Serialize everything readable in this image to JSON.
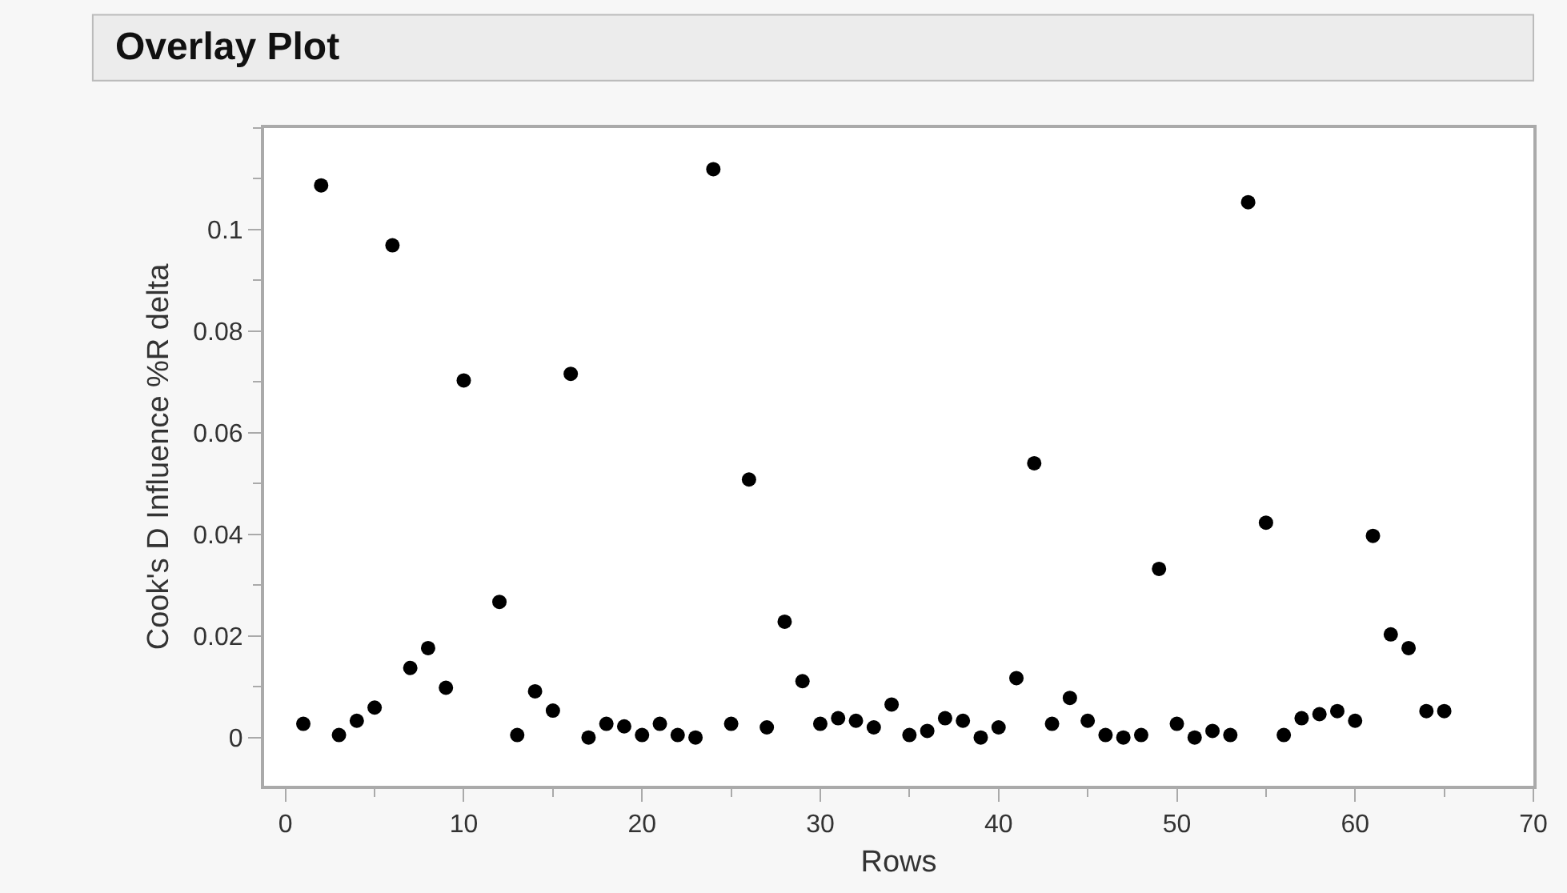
{
  "chart_data": {
    "type": "scatter",
    "title": "Overlay Plot",
    "xlabel": "Rows",
    "ylabel": "Cook's D Influence %R delta",
    "x": [
      1,
      2,
      3,
      4,
      5,
      6,
      7,
      8,
      9,
      10,
      11,
      12,
      13,
      14,
      15,
      16,
      17,
      18,
      19,
      20,
      21,
      22,
      23,
      24,
      25,
      26,
      27,
      28,
      29,
      30,
      31,
      32,
      33,
      34,
      35,
      36,
      37,
      38,
      39,
      40,
      41,
      42,
      43,
      44,
      45,
      46,
      47,
      48,
      49,
      50,
      51,
      52,
      53,
      54,
      55,
      56,
      57,
      58,
      59,
      60,
      61,
      62,
      63,
      64,
      65
    ],
    "series": [
      {
        "color": "#000000",
        "values": [
          0.0027,
          0.1087,
          0.0005,
          0.0033,
          0.0059,
          0.0969,
          0.0137,
          0.0176,
          0.0098,
          0.0703,
          null,
          0.0267,
          0.0005,
          0.0091,
          0.0053,
          0.0716,
          0.0,
          0.0027,
          0.0022,
          0.0005,
          0.0027,
          0.0005,
          0.0,
          0.1119,
          0.0027,
          0.0508,
          0.002,
          0.0228,
          0.0111,
          0.0027,
          0.0038,
          0.0033,
          0.002,
          0.0065,
          0.0005,
          0.0013,
          0.0038,
          0.0033,
          0.0,
          0.002,
          0.0117,
          0.054,
          0.0027,
          0.0078,
          0.0033,
          0.0005,
          0.0,
          0.0005,
          0.0332,
          0.0027,
          0.0,
          0.0013,
          0.0005,
          0.1054,
          0.0423,
          0.0005,
          0.0038,
          0.0046,
          0.0052,
          0.0033,
          0.0397,
          0.0203,
          0.0176,
          0.0052,
          0.0052
        ]
      }
    ],
    "xlim": [
      -1.2,
      70
    ],
    "xticks": [
      0,
      10,
      20,
      30,
      40,
      50,
      60,
      70
    ],
    "ylim": [
      -0.0095,
      0.12
    ],
    "yticks": [
      0,
      0.02,
      0.04,
      0.06,
      0.08,
      0.1
    ],
    "marker": "circle"
  }
}
